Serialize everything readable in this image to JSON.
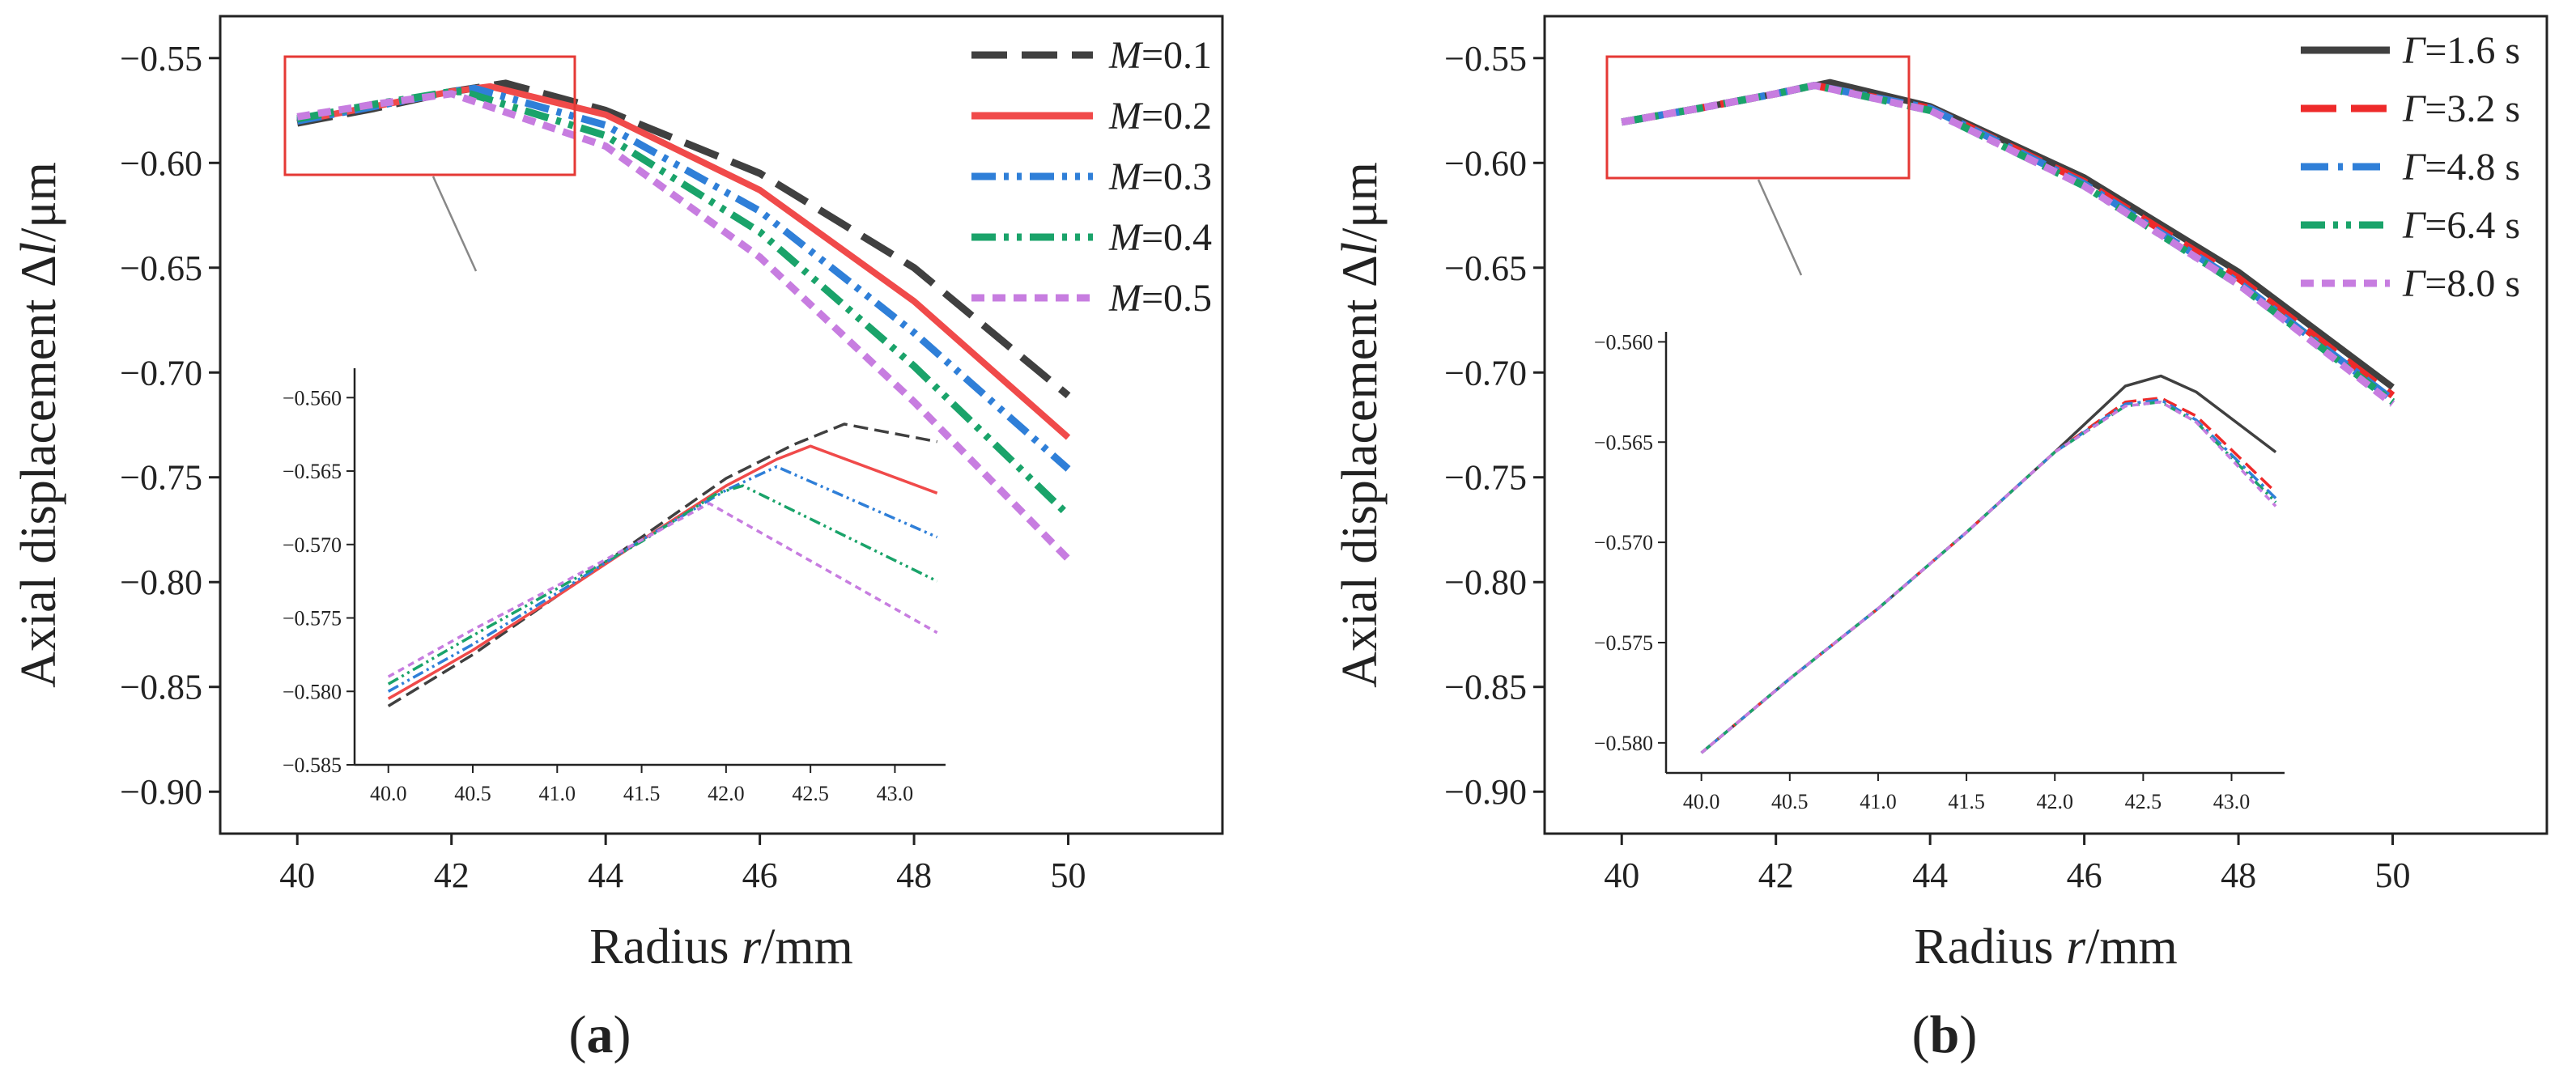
{
  "colors": {
    "M_0.1": "#404040",
    "M_0.2": "#f04a4a",
    "M_0.3": "#2f7fd8",
    "M_0.4": "#1aa36a",
    "M_0.5": "#c77de0",
    "G_1.6": "#404040",
    "G_3.2": "#ee2a2a",
    "G_4.8": "#2f7fd8",
    "G_6.4": "#1aa36a",
    "G_8.0": "#c77de0",
    "zoom_box": "#e53935"
  },
  "chart_data": [
    {
      "id": "a",
      "type": "line",
      "panel_label": "a",
      "xlabel": {
        "pre": "Radius ",
        "var": "r",
        "post": "/mm"
      },
      "ylabel": {
        "pre": "Axial displacement  ∆",
        "var": "l",
        "post": "/μm"
      },
      "xlim": [
        39,
        52
      ],
      "ylim": [
        -0.92,
        -0.53
      ],
      "x_ticks": [
        "40",
        "42",
        "44",
        "46",
        "48",
        "50"
      ],
      "y_ticks": [
        "−0.55",
        "−0.60",
        "−0.65",
        "−0.70",
        "−0.75",
        "−0.80",
        "−0.85",
        "−0.90"
      ],
      "legend_position": "top-right",
      "series": [
        {
          "name_var": "M",
          "name_val": "=0.1",
          "color_key": "M_0.1",
          "dash": "long-dash",
          "x": [
            40,
            41,
            42,
            42.7,
            44,
            46,
            48,
            50
          ],
          "y": [
            -0.581,
            -0.574,
            -0.566,
            -0.562,
            -0.575,
            -0.605,
            -0.65,
            -0.711
          ]
        },
        {
          "name_var": "M",
          "name_val": "=0.2",
          "color_key": "M_0.2",
          "dash": "solid",
          "x": [
            40,
            41,
            42,
            42.5,
            44,
            46,
            48,
            50
          ],
          "y": [
            -0.58,
            -0.573,
            -0.566,
            -0.5635,
            -0.577,
            -0.613,
            -0.666,
            -0.731
          ]
        },
        {
          "name_var": "M",
          "name_val": "=0.3",
          "color_key": "M_0.3",
          "dash": "dash-dot-dot",
          "x": [
            40,
            41,
            42,
            42.3,
            44,
            46,
            48,
            50
          ],
          "y": [
            -0.58,
            -0.573,
            -0.566,
            -0.5645,
            -0.582,
            -0.623,
            -0.681,
            -0.746
          ]
        },
        {
          "name_var": "M",
          "name_val": "=0.4",
          "color_key": "M_0.4",
          "dash": "dash-dot-dot",
          "x": [
            40,
            41,
            42,
            42.15,
            44,
            46,
            48,
            50
          ],
          "y": [
            -0.579,
            -0.572,
            -0.566,
            -0.566,
            -0.587,
            -0.633,
            -0.697,
            -0.768
          ]
        },
        {
          "name_var": "M",
          "name_val": "=0.5",
          "color_key": "M_0.5",
          "dash": "short-dash",
          "x": [
            40,
            41,
            42,
            44,
            46,
            48,
            50
          ],
          "y": [
            -0.578,
            -0.572,
            -0.567,
            -0.592,
            -0.645,
            -0.714,
            -0.789
          ]
        }
      ],
      "inset": {
        "xlim": [
          39.8,
          43.3
        ],
        "ylim": [
          -0.585,
          -0.558
        ],
        "x_ticks": [
          "40.0",
          "40.5",
          "41.0",
          "41.5",
          "42.0",
          "42.5",
          "43.0"
        ],
        "y_ticks": [
          "−0.560",
          "−0.565",
          "−0.570",
          "−0.575",
          "−0.580",
          "−0.585"
        ],
        "series": [
          {
            "color_key": "M_0.1",
            "x": [
              40,
              40.5,
              41,
              41.5,
              42,
              42.4,
              42.7,
              43.25
            ],
            "y": [
              -0.581,
              -0.5775,
              -0.5735,
              -0.5695,
              -0.5655,
              -0.5632,
              -0.5618,
              -0.563
            ]
          },
          {
            "color_key": "M_0.2",
            "x": [
              40,
              40.5,
              41,
              41.5,
              42,
              42.3,
              42.5,
              43.25
            ],
            "y": [
              -0.5805,
              -0.5772,
              -0.5735,
              -0.5697,
              -0.566,
              -0.5642,
              -0.5633,
              -0.5665
            ]
          },
          {
            "color_key": "M_0.3",
            "x": [
              40,
              40.5,
              41,
              41.5,
              42,
              42.3,
              43.25
            ],
            "y": [
              -0.58,
              -0.5768,
              -0.5733,
              -0.5697,
              -0.5663,
              -0.5647,
              -0.5695
            ]
          },
          {
            "color_key": "M_0.4",
            "x": [
              40,
              40.5,
              41,
              41.5,
              41.95,
              42.1,
              43.25
            ],
            "y": [
              -0.5795,
              -0.5762,
              -0.573,
              -0.5698,
              -0.5665,
              -0.566,
              -0.5725
            ]
          },
          {
            "color_key": "M_0.5",
            "x": [
              40,
              40.5,
              41,
              41.5,
              41.9,
              43.25
            ],
            "y": [
              -0.579,
              -0.5758,
              -0.5728,
              -0.5697,
              -0.5672,
              -0.576
            ]
          }
        ]
      }
    },
    {
      "id": "b",
      "type": "line",
      "panel_label": "b",
      "xlabel": {
        "pre": "Radius ",
        "var": "r",
        "post": "/mm"
      },
      "ylabel": {
        "pre": "Axial displacement  ∆",
        "var": "l",
        "post": "/μm"
      },
      "xlim": [
        39,
        52
      ],
      "ylim": [
        -0.92,
        -0.53
      ],
      "x_ticks": [
        "40",
        "42",
        "44",
        "46",
        "48",
        "50"
      ],
      "y_ticks": [
        "−0.55",
        "−0.60",
        "−0.65",
        "−0.70",
        "−0.75",
        "−0.80",
        "−0.85",
        "−0.90"
      ],
      "legend_position": "top-right",
      "series": [
        {
          "name_var": "Γ",
          "name_val": "=1.6 s",
          "color_key": "G_1.6",
          "dash": "solid",
          "x": [
            40,
            41,
            42,
            42.7,
            44,
            46,
            48,
            50
          ],
          "y": [
            -0.5805,
            -0.574,
            -0.567,
            -0.5615,
            -0.573,
            -0.607,
            -0.652,
            -0.707
          ]
        },
        {
          "name_var": "Γ",
          "name_val": "=3.2 s",
          "color_key": "G_3.2",
          "dash": "long-dash",
          "x": [
            40,
            41,
            42,
            42.5,
            44,
            46,
            48,
            50
          ],
          "y": [
            -0.5805,
            -0.574,
            -0.567,
            -0.563,
            -0.574,
            -0.609,
            -0.655,
            -0.711
          ]
        },
        {
          "name_var": "Γ",
          "name_val": "=4.8 s",
          "color_key": "G_4.8",
          "dash": "dash-dot",
          "x": [
            40,
            41,
            42,
            42.5,
            44,
            46,
            48,
            50
          ],
          "y": [
            -0.5805,
            -0.574,
            -0.567,
            -0.563,
            -0.574,
            -0.61,
            -0.657,
            -0.713
          ]
        },
        {
          "name_var": "Γ",
          "name_val": "=6.4 s",
          "color_key": "G_6.4",
          "dash": "dash-dot-dot",
          "x": [
            40,
            41,
            42,
            42.5,
            44,
            46,
            48,
            50
          ],
          "y": [
            -0.5805,
            -0.574,
            -0.567,
            -0.563,
            -0.575,
            -0.611,
            -0.658,
            -0.714
          ]
        },
        {
          "name_var": "Γ",
          "name_val": "=8.0 s",
          "color_key": "G_8.0",
          "dash": "short-dash",
          "x": [
            40,
            41,
            42,
            42.5,
            44,
            46,
            48,
            50
          ],
          "y": [
            -0.5805,
            -0.574,
            -0.567,
            -0.563,
            -0.575,
            -0.611,
            -0.658,
            -0.715
          ]
        }
      ],
      "inset": {
        "xlim": [
          39.8,
          43.3
        ],
        "ylim": [
          -0.5815,
          -0.5595
        ],
        "x_ticks": [
          "40.0",
          "40.5",
          "41.0",
          "41.5",
          "42.0",
          "42.5",
          "43.0"
        ],
        "y_ticks": [
          "−0.560",
          "−0.565",
          "−0.570",
          "−0.575",
          "−0.580"
        ],
        "series": [
          {
            "color_key": "G_1.6",
            "x": [
              40,
              40.5,
              41,
              41.5,
              42,
              42.4,
              42.6,
              42.8,
              43.25
            ],
            "y": [
              -0.5805,
              -0.5768,
              -0.5733,
              -0.5695,
              -0.5655,
              -0.5622,
              -0.5617,
              -0.5625,
              -0.5655
            ]
          },
          {
            "color_key": "G_3.2",
            "x": [
              40,
              40.5,
              41,
              41.5,
              42,
              42.4,
              42.6,
              42.8,
              43.25
            ],
            "y": [
              -0.5805,
              -0.5768,
              -0.5733,
              -0.5695,
              -0.5655,
              -0.563,
              -0.5628,
              -0.5637,
              -0.5675
            ]
          },
          {
            "color_key": "G_4.8",
            "x": [
              40,
              40.5,
              41,
              41.5,
              42,
              42.4,
              42.6,
              42.8,
              43.25
            ],
            "y": [
              -0.5805,
              -0.5768,
              -0.5733,
              -0.5695,
              -0.5655,
              -0.5631,
              -0.5629,
              -0.5639,
              -0.5678
            ]
          },
          {
            "color_key": "G_6.4",
            "x": [
              40,
              40.5,
              41,
              41.5,
              42,
              42.4,
              42.6,
              42.8,
              43.25
            ],
            "y": [
              -0.5805,
              -0.5768,
              -0.5733,
              -0.5695,
              -0.5655,
              -0.5632,
              -0.563,
              -0.564,
              -0.568
            ]
          },
          {
            "color_key": "G_8.0",
            "x": [
              40,
              40.5,
              41,
              41.5,
              42,
              42.4,
              42.6,
              42.8,
              43.25
            ],
            "y": [
              -0.5805,
              -0.5768,
              -0.5733,
              -0.5695,
              -0.5655,
              -0.5632,
              -0.563,
              -0.564,
              -0.5682
            ]
          }
        ]
      }
    }
  ]
}
